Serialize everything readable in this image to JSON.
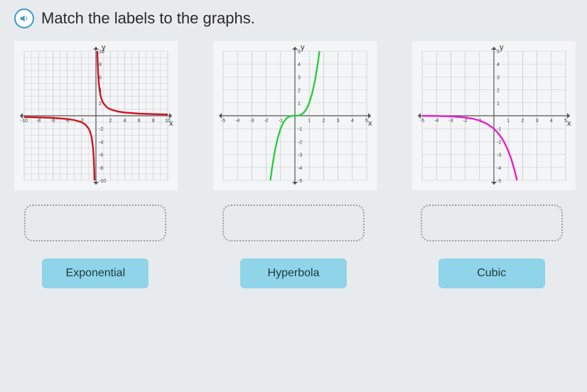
{
  "instruction": "Match the labels to the graphs.",
  "audio_icon_color": "#3a9bc9",
  "labels": {
    "a": "Exponential",
    "b": "Hyperbola",
    "c": "Cubic"
  },
  "graph1": {
    "type": "line",
    "curve_color": "#d11321",
    "line_width": 2.4,
    "xlim": [
      -10,
      10
    ],
    "ylim": [
      -10,
      10
    ],
    "xtick_step": 2,
    "ytick_step": 2,
    "xlabel": "x",
    "ylabel": "y",
    "background_color": "#f4f5f6",
    "grid_color": "#bfc3c7",
    "axis_color": "#555555",
    "points": [
      [
        -10,
        -0.2
      ],
      [
        -8,
        -0.25
      ],
      [
        -6,
        -0.33
      ],
      [
        -4,
        -0.5
      ],
      [
        -3,
        -0.67
      ],
      [
        -2,
        -1
      ],
      [
        -1.5,
        -1.33
      ],
      [
        -1,
        -2
      ],
      [
        -0.8,
        -2.5
      ],
      [
        -0.6,
        -3.33
      ],
      [
        -0.4,
        -5
      ],
      [
        -0.3,
        -6.67
      ],
      [
        -0.22,
        -9
      ],
      [
        -0.2,
        -10
      ]
    ],
    "points2": [
      [
        0.2,
        10
      ],
      [
        0.22,
        9
      ],
      [
        0.3,
        6.67
      ],
      [
        0.4,
        5
      ],
      [
        0.6,
        3.33
      ],
      [
        0.8,
        2.5
      ],
      [
        1,
        2
      ],
      [
        1.5,
        1.33
      ],
      [
        2,
        1
      ],
      [
        3,
        0.67
      ],
      [
        4,
        0.5
      ],
      [
        6,
        0.33
      ],
      [
        8,
        0.25
      ],
      [
        10,
        0.2
      ]
    ]
  },
  "graph2": {
    "type": "line",
    "curve_color": "#2ecc40",
    "line_width": 2.4,
    "xlim": [
      -5,
      5
    ],
    "ylim": [
      -5,
      5
    ],
    "xtick_step": 1,
    "ytick_step": 1,
    "xlabel": "x",
    "ylabel": "y",
    "background_color": "#f4f5f6",
    "grid_color": "#bfc3c7",
    "axis_color": "#555555",
    "points": [
      [
        -1.71,
        -5
      ],
      [
        -1.6,
        -4.1
      ],
      [
        -1.4,
        -2.74
      ],
      [
        -1.2,
        -1.73
      ],
      [
        -1,
        -1
      ],
      [
        -0.8,
        -0.51
      ],
      [
        -0.6,
        -0.22
      ],
      [
        -0.4,
        -0.064
      ],
      [
        -0.2,
        -0.008
      ],
      [
        0,
        0
      ],
      [
        0.2,
        0.008
      ],
      [
        0.4,
        0.064
      ],
      [
        0.6,
        0.22
      ],
      [
        0.8,
        0.51
      ],
      [
        1,
        1
      ],
      [
        1.2,
        1.73
      ],
      [
        1.4,
        2.74
      ],
      [
        1.6,
        4.1
      ],
      [
        1.71,
        5
      ]
    ]
  },
  "graph3": {
    "type": "line",
    "curve_color": "#e91ecb",
    "line_width": 2.4,
    "xlim": [
      -5,
      5
    ],
    "ylim": [
      -5,
      5
    ],
    "xtick_step": 1,
    "ytick_step": 1,
    "xlabel": "x",
    "ylabel": "y",
    "background_color": "#f4f5f6",
    "grid_color": "#bfc3c7",
    "axis_color": "#555555",
    "points": [
      [
        -5,
        -0.007
      ],
      [
        -4,
        -0.018
      ],
      [
        -3,
        -0.05
      ],
      [
        -2,
        -0.135
      ],
      [
        -1.5,
        -0.22
      ],
      [
        -1,
        -0.37
      ],
      [
        -0.5,
        -0.61
      ],
      [
        0,
        -1
      ],
      [
        0.3,
        -1.35
      ],
      [
        0.6,
        -1.82
      ],
      [
        0.8,
        -2.23
      ],
      [
        1,
        -2.72
      ],
      [
        1.2,
        -3.32
      ],
      [
        1.4,
        -4.06
      ],
      [
        1.6,
        -4.95
      ],
      [
        1.61,
        -5
      ]
    ]
  }
}
